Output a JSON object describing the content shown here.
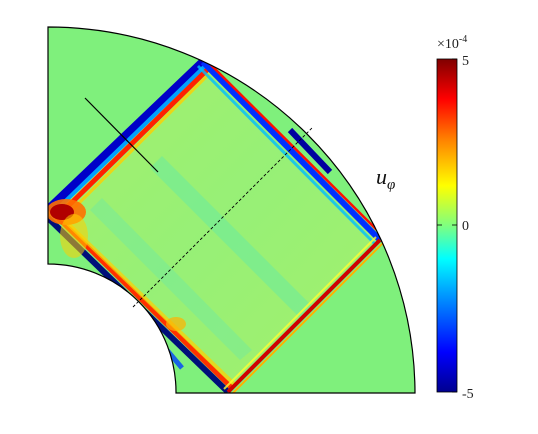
{
  "field_label": {
    "symbol": "u",
    "subscript": "φ"
  },
  "colorbar": {
    "exponent_label": "×10",
    "exponent_power": "-4",
    "max_label": "5",
    "mid_label": "0",
    "min_label": "-5",
    "colormap": [
      "#00008f",
      "#0000ff",
      "#00a0ff",
      "#00ffff",
      "#7fff7f",
      "#ffff00",
      "#ff8000",
      "#ff0000",
      "#800000"
    ]
  },
  "colors": {
    "background_field": "#7ff07c",
    "outline": "#000000"
  }
}
